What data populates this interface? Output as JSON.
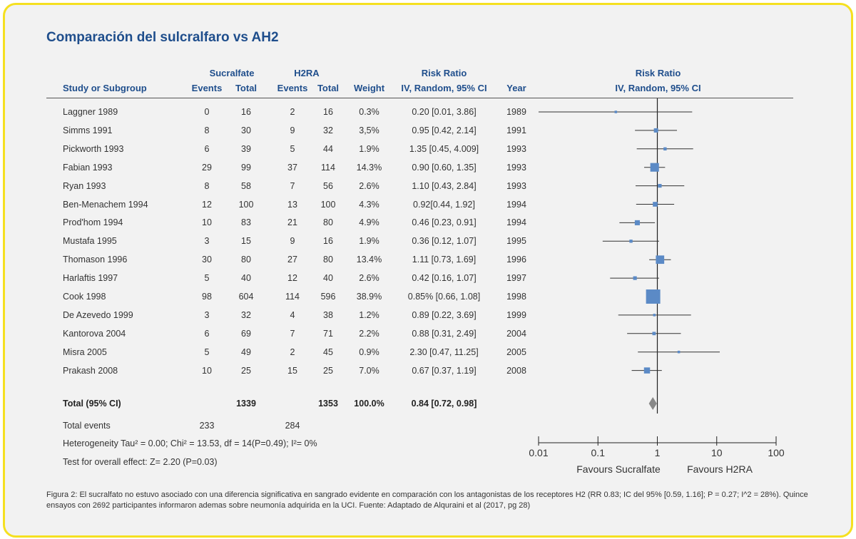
{
  "title": "Comparación del sulcralfaro vs AH2",
  "headers": {
    "study": "Study or Subgroup",
    "group1": "Sucralfate",
    "group2": "H2RA",
    "events": "Events",
    "total": "Total",
    "weight": "Weight",
    "rr_title": "Risk Ratio",
    "rr_method": "IV, Random, 95% CI",
    "year": "Year",
    "plot_title": "Risk Ratio",
    "plot_method": "IV, Random, 95% CI"
  },
  "rows": [
    {
      "study": "Laggner 1989",
      "e1": "0",
      "t1": "16",
      "e2": "2",
      "t2": "16",
      "weight": "0.3%",
      "ci_text": "0.20 [0.01, 3.86]",
      "year": "1989"
    },
    {
      "study": "Simms 1991",
      "e1": "8",
      "t1": "30",
      "e2": "9",
      "t2": "32",
      "weight": "3,5%",
      "ci_text": "0.95 [0.42, 2.14]",
      "year": "1991"
    },
    {
      "study": "Pickworth 1993",
      "e1": "6",
      "t1": "39",
      "e2": "5",
      "t2": "44",
      "weight": "1.9%",
      "ci_text": "1.35 [0.45, 4.009]",
      "year": "1993"
    },
    {
      "study": "Fabian 1993",
      "e1": "29",
      "t1": "99",
      "e2": "37",
      "t2": "114",
      "weight": "14.3%",
      "ci_text": "0.90 [0.60, 1.35]",
      "year": "1993"
    },
    {
      "study": "Ryan 1993",
      "e1": "8",
      "t1": "58",
      "e2": "7",
      "t2": "56",
      "weight": "2.6%",
      "ci_text": "1.10 [0.43, 2.84]",
      "year": "1993"
    },
    {
      "study": "Ben-Menachem 1994",
      "e1": "12",
      "t1": "100",
      "e2": "13",
      "t2": "100",
      "weight": "4.3%",
      "ci_text": "0.92[0.44, 1.92]",
      "year": "1994"
    },
    {
      "study": "Prod'hom 1994",
      "e1": "10",
      "t1": "83",
      "e2": "21",
      "t2": "80",
      "weight": "4.9%",
      "ci_text": "0.46 [0.23, 0.91]",
      "year": "1994"
    },
    {
      "study": "Mustafa 1995",
      "e1": "3",
      "t1": "15",
      "e2": "9",
      "t2": "16",
      "weight": "1.9%",
      "ci_text": "0.36 [0.12, 1.07]",
      "year": "1995"
    },
    {
      "study": "Thomason 1996",
      "e1": "30",
      "t1": "80",
      "e2": "27",
      "t2": "80",
      "weight": "13.4%",
      "ci_text": "1.11 [0.73, 1.69]",
      "year": "1996"
    },
    {
      "study": "Harlaftis 1997",
      "e1": "5",
      "t1": "40",
      "e2": "12",
      "t2": "40",
      "weight": "2.6%",
      "ci_text": "0.42 [0.16, 1.07]",
      "year": "1997"
    },
    {
      "study": "Cook 1998",
      "e1": "98",
      "t1": "604",
      "e2": "114",
      "t2": "596",
      "weight": "38.9%",
      "ci_text": "0.85% [0.66, 1.08]",
      "year": "1998"
    },
    {
      "study": "De Azevedo 1999",
      "e1": "3",
      "t1": "32",
      "e2": "4",
      "t2": "38",
      "weight": "1.2%",
      "ci_text": "0.89 [0.22, 3.69]",
      "year": "1999"
    },
    {
      "study": "Kantorova 2004",
      "e1": "6",
      "t1": "69",
      "e2": "7",
      "t2": "71",
      "weight": "2.2%",
      "ci_text": "0.88 [0.31, 2.49]",
      "year": "2004"
    },
    {
      "study": "Misra 2005",
      "e1": "5",
      "t1": "49",
      "e2": "2",
      "t2": "45",
      "weight": "0.9%",
      "ci_text": "2.30 [0.47, 11.25]",
      "year": "2005"
    },
    {
      "study": "Prakash 2008",
      "e1": "10",
      "t1": "25",
      "e2": "15",
      "t2": "25",
      "weight": "7.0%",
      "ci_text": "0.67 [0.37, 1.19]",
      "year": "2008"
    }
  ],
  "total": {
    "label": "Total (95% CI)",
    "t1": "1339",
    "t2": "1353",
    "weight": "100.0%",
    "ci_text": "0.84 [0.72, 0.98]"
  },
  "total_events": {
    "label": "Total events",
    "e1": "233",
    "e2": "284"
  },
  "heterogeneity": "Heterogeneity Tau² = 0.00; Chi² = 13.53, df = 14(P=0.49); I²= 0%",
  "overall_effect": "Test for overall effect: Z= 2.20 (P=0.03)",
  "caption": "Figura 2: El sucralfato no estuvo asociado con una diferencia significativa en sangrado evidente en comparación con los antagonistas de los receptores H2 (RR 0.83; IC del 95% [0.59, 1.16]; P = 0.27; I^2 = 28%). Quince ensayos con 2692 participantes informaron ademas sobre neumonía adquirida en la UCI. Fuente: Adaptado de Alquraini et al (2017, pg 28)",
  "colors": {
    "title": "#1f4e8c",
    "marker": "#5b8ac6",
    "diamond": "#888888",
    "frame": "#f5e020",
    "background": "#f2f2f2"
  },
  "chart_data": {
    "type": "forest",
    "scale": "log",
    "xlim": [
      0.01,
      100
    ],
    "ticks": [
      0.01,
      0.1,
      1,
      10,
      100
    ],
    "tick_labels": [
      "0.01",
      "0.1",
      "1",
      "10",
      "100"
    ],
    "favours_left": "Favours Sucralfate",
    "favours_right": "Favours H2RA",
    "null_line": 1,
    "points": [
      {
        "study": "Laggner 1989",
        "rr": 0.2,
        "lo": 0.01,
        "hi": 3.86,
        "weight": 0.3
      },
      {
        "study": "Simms 1991",
        "rr": 0.95,
        "lo": 0.42,
        "hi": 2.14,
        "weight": 3.5
      },
      {
        "study": "Pickworth 1993",
        "rr": 1.35,
        "lo": 0.45,
        "hi": 4.009,
        "weight": 1.9
      },
      {
        "study": "Fabian 1993",
        "rr": 0.9,
        "lo": 0.6,
        "hi": 1.35,
        "weight": 14.3
      },
      {
        "study": "Ryan 1993",
        "rr": 1.1,
        "lo": 0.43,
        "hi": 2.84,
        "weight": 2.6
      },
      {
        "study": "Ben-Menachem 1994",
        "rr": 0.92,
        "lo": 0.44,
        "hi": 1.92,
        "weight": 4.3
      },
      {
        "study": "Prod'hom 1994",
        "rr": 0.46,
        "lo": 0.23,
        "hi": 0.91,
        "weight": 4.9
      },
      {
        "study": "Mustafa 1995",
        "rr": 0.36,
        "lo": 0.12,
        "hi": 1.07,
        "weight": 1.9
      },
      {
        "study": "Thomason 1996",
        "rr": 1.11,
        "lo": 0.73,
        "hi": 1.69,
        "weight": 13.4
      },
      {
        "study": "Harlaftis 1997",
        "rr": 0.42,
        "lo": 0.16,
        "hi": 1.07,
        "weight": 2.6
      },
      {
        "study": "Cook 1998",
        "rr": 0.85,
        "lo": 0.66,
        "hi": 1.08,
        "weight": 38.9
      },
      {
        "study": "De Azevedo 1999",
        "rr": 0.89,
        "lo": 0.22,
        "hi": 3.69,
        "weight": 1.2
      },
      {
        "study": "Kantorova 2004",
        "rr": 0.88,
        "lo": 0.31,
        "hi": 2.49,
        "weight": 2.2
      },
      {
        "study": "Misra 2005",
        "rr": 2.3,
        "lo": 0.47,
        "hi": 11.25,
        "weight": 0.9
      },
      {
        "study": "Prakash 2008",
        "rr": 0.67,
        "lo": 0.37,
        "hi": 1.19,
        "weight": 7.0
      }
    ],
    "total": {
      "rr": 0.84,
      "lo": 0.72,
      "hi": 0.98
    }
  }
}
